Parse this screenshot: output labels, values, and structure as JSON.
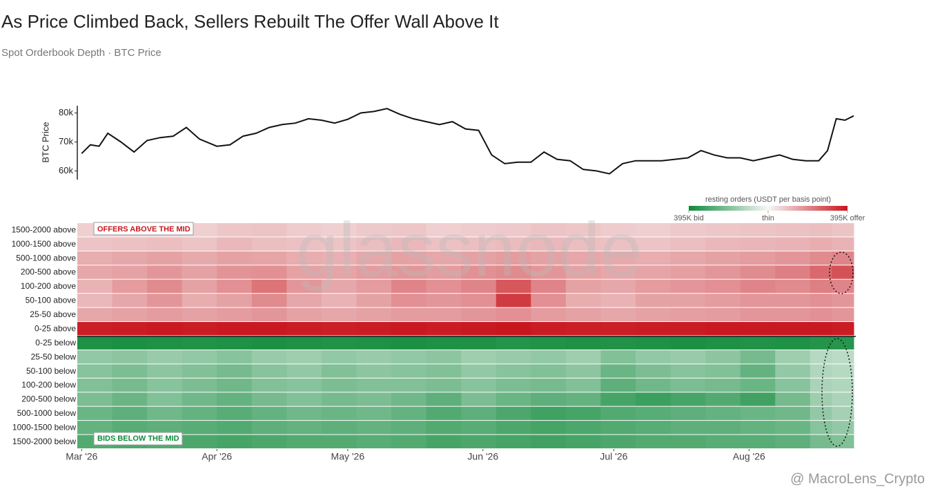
{
  "chart_data": [
    {
      "type": "line",
      "title": "As Price Climbed Back, Sellers Rebuilt The Offer Wall Above It",
      "subtitle": "Spot Orderbook Depth · BTC Price",
      "ylabel": "BTC Price",
      "color": "#111111",
      "x": [
        0,
        2,
        4,
        6,
        9,
        12,
        15,
        18,
        21,
        24,
        27,
        31,
        34,
        37,
        40,
        43,
        46,
        49,
        52,
        55,
        58,
        61,
        64,
        67,
        70,
        73,
        76,
        79,
        82,
        85,
        88,
        91,
        94,
        97,
        100,
        103,
        106,
        109,
        112,
        115,
        118,
        121,
        124,
        127,
        130,
        133,
        136,
        139,
        142,
        145,
        148,
        151,
        154,
        157,
        160,
        163,
        166,
        169,
        171,
        173,
        175,
        177
      ],
      "values": [
        66000,
        69000,
        68500,
        73000,
        70000,
        66500,
        70500,
        71500,
        72000,
        75000,
        71000,
        68500,
        69000,
        72000,
        73000,
        75000,
        76000,
        76500,
        78000,
        77500,
        76500,
        77800,
        80000,
        80500,
        81500,
        79500,
        78000,
        77000,
        76000,
        77000,
        74500,
        74000,
        65500,
        62500,
        63000,
        63000,
        66500,
        64000,
        63500,
        60500,
        60000,
        59000,
        62500,
        63500,
        63500,
        63500,
        64000,
        64500,
        67000,
        65500,
        64500,
        64500,
        63500,
        64500,
        65500,
        64000,
        63500,
        63500,
        67000,
        78000,
        77500,
        79000
      ],
      "xlim": [
        -1,
        177
      ],
      "ylim": [
        57000,
        82500
      ],
      "yticks": [
        {
          "value": 60000,
          "label": "60k"
        },
        {
          "value": 70000,
          "label": "70k"
        },
        {
          "value": 80000,
          "label": "80k"
        }
      ]
    },
    {
      "type": "heatmap",
      "categories": [
        "1500-2000 above",
        "1000-1500 above",
        "500-1000 above",
        "200-500 above",
        "100-200 above",
        "50-100 above",
        "25-50 above",
        "0-25 above",
        "0-25 below",
        "25-50 below",
        "50-100 below",
        "100-200 below",
        "200-500 below",
        "500-1000 below",
        "1000-1500 below",
        "1500-2000 below"
      ],
      "bins": [
        -1,
        7,
        15,
        23,
        31,
        39,
        47,
        55,
        63,
        71,
        79,
        87,
        95,
        103,
        111,
        119,
        127,
        135,
        143,
        151,
        159,
        167,
        172,
        177
      ],
      "values": [
        [
          70,
          75,
          80,
          70,
          85,
          90,
          75,
          70,
          80,
          85,
          70,
          75,
          80,
          90,
          85,
          75,
          70,
          80,
          85,
          90,
          95,
          100,
          90
        ],
        [
          90,
          95,
          100,
          90,
          110,
          100,
          95,
          90,
          100,
          110,
          95,
          100,
          105,
          110,
          100,
          95,
          90,
          100,
          110,
          115,
          120,
          130,
          120
        ],
        [
          130,
          140,
          150,
          135,
          150,
          145,
          130,
          125,
          140,
          150,
          140,
          150,
          160,
          150,
          140,
          135,
          130,
          140,
          150,
          160,
          170,
          190,
          200
        ],
        [
          140,
          150,
          170,
          150,
          175,
          180,
          150,
          145,
          160,
          170,
          160,
          180,
          190,
          170,
          150,
          140,
          145,
          155,
          170,
          190,
          210,
          250,
          290
        ],
        [
          120,
          160,
          190,
          150,
          180,
          230,
          170,
          140,
          160,
          200,
          180,
          200,
          280,
          200,
          150,
          140,
          160,
          170,
          180,
          200,
          190,
          210,
          200
        ],
        [
          110,
          140,
          170,
          130,
          150,
          190,
          140,
          120,
          150,
          180,
          170,
          180,
          330,
          180,
          130,
          120,
          150,
          150,
          160,
          170,
          170,
          180,
          170
        ],
        [
          140,
          150,
          160,
          150,
          160,
          170,
          150,
          140,
          150,
          160,
          160,
          170,
          180,
          160,
          150,
          140,
          150,
          155,
          160,
          170,
          170,
          180,
          170
        ],
        [
          380,
          385,
          390,
          385,
          390,
          390,
          385,
          380,
          385,
          390,
          385,
          390,
          395,
          385,
          380,
          380,
          385,
          385,
          390,
          390,
          390,
          390,
          385
        ],
        [
          -370,
          -375,
          -370,
          -365,
          -370,
          -375,
          -370,
          -365,
          -370,
          -375,
          -370,
          -370,
          -360,
          -365,
          -370,
          -365,
          -370,
          -375,
          -370,
          -365,
          -370,
          -360,
          -355
        ],
        [
          -170,
          -180,
          -160,
          -170,
          -190,
          -160,
          -150,
          -170,
          -160,
          -170,
          -180,
          -150,
          -160,
          -170,
          -150,
          -200,
          -170,
          -160,
          -180,
          -220,
          -150,
          -110,
          -100
        ],
        [
          -190,
          -210,
          -180,
          -200,
          -220,
          -190,
          -170,
          -200,
          -180,
          -190,
          -200,
          -170,
          -190,
          -200,
          -180,
          -240,
          -210,
          -190,
          -200,
          -250,
          -170,
          -120,
          -110
        ],
        [
          -200,
          -220,
          -190,
          -210,
          -230,
          -200,
          -190,
          -210,
          -200,
          -200,
          -210,
          -190,
          -210,
          -220,
          -200,
          -260,
          -230,
          -210,
          -220,
          -240,
          -190,
          -130,
          -120
        ],
        [
          -210,
          -240,
          -200,
          -230,
          -250,
          -220,
          -200,
          -220,
          -210,
          -230,
          -260,
          -210,
          -240,
          -260,
          -250,
          -300,
          -320,
          -300,
          -280,
          -310,
          -220,
          -150,
          -130
        ],
        [
          -240,
          -260,
          -230,
          -250,
          -270,
          -250,
          -230,
          -240,
          -230,
          -250,
          -280,
          -260,
          -290,
          -310,
          -300,
          -280,
          -270,
          -260,
          -250,
          -240,
          -230,
          -170,
          -140
        ],
        [
          -250,
          -270,
          -260,
          -270,
          -280,
          -260,
          -250,
          -260,
          -250,
          -260,
          -280,
          -270,
          -290,
          -300,
          -290,
          -280,
          -270,
          -260,
          -260,
          -250,
          -240,
          -190,
          -170
        ],
        [
          -280,
          -290,
          -280,
          -290,
          -300,
          -290,
          -280,
          -280,
          -270,
          -280,
          -300,
          -290,
          -300,
          -310,
          -300,
          -290,
          -280,
          -280,
          -270,
          -270,
          -260,
          -220,
          -200
        ]
      ],
      "xlim": [
        -1,
        177
      ],
      "xticks": [
        {
          "value": 0,
          "label": "Mar '26"
        },
        {
          "value": 31,
          "label": "Apr '26"
        },
        {
          "value": 61,
          "label": "May '26"
        },
        {
          "value": 92,
          "label": "Jun '26"
        },
        {
          "value": 122,
          "label": "Jul '26"
        },
        {
          "value": 153,
          "label": "Aug '26"
        }
      ],
      "colorbar": {
        "title": "resting orders (USDT per basis point)",
        "colors": [
          "#0f8a3a",
          "#f7f7f7",
          "#c8161d"
        ],
        "ticks": [
          {
            "value": -395,
            "label": "395K bid"
          },
          {
            "value": 0,
            "label": "thin"
          },
          {
            "value": 395,
            "label": "395K offer"
          }
        ]
      },
      "annotations": [
        "OFFERS ABOVE THE MID",
        "BIDS BELOW THE MID"
      ],
      "watermark": "glassnode",
      "credit": "@ MacroLens_Crypto"
    }
  ]
}
